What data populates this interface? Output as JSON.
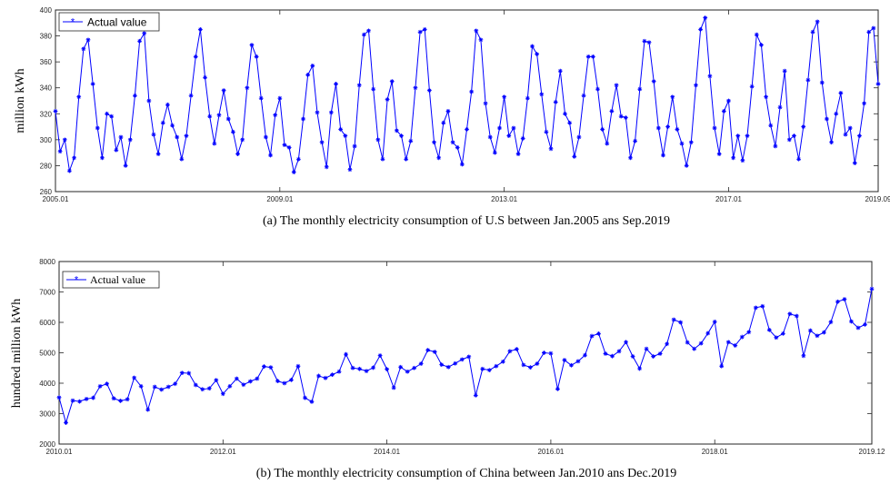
{
  "chart_data": [
    {
      "type": "line",
      "caption": "(a) The monthly electricity consumption of U.S between Jan.2005 ans Sep.2019",
      "ylabel": "million kWh",
      "xlabel": "",
      "ylim": [
        260,
        400
      ],
      "yticks": [
        260,
        280,
        300,
        320,
        340,
        360,
        380,
        400
      ],
      "xticks": [
        "2005.01",
        "2009.01",
        "2013.01",
        "2017.01",
        "2019.09"
      ],
      "x_start": "2005.01",
      "x_end": "2019.09",
      "legend": "top-left",
      "grid": false,
      "color": "#0000ff",
      "series": [
        {
          "name": "Actual value",
          "values": [
            322,
            291,
            300,
            276,
            286,
            333,
            370,
            377,
            343,
            309,
            286,
            320,
            318,
            292,
            302,
            280,
            300,
            334,
            376,
            382,
            330,
            304,
            289,
            313,
            327,
            311,
            302,
            285,
            303,
            334,
            364,
            385,
            348,
            318,
            297,
            319,
            338,
            316,
            306,
            289,
            300,
            340,
            373,
            364,
            332,
            302,
            288,
            319,
            332,
            296,
            294,
            275,
            285,
            316,
            350,
            357,
            321,
            298,
            279,
            321,
            343,
            308,
            303,
            277,
            295,
            342,
            381,
            384,
            339,
            300,
            285,
            331,
            345,
            307,
            303,
            285,
            299,
            340,
            383,
            385,
            338,
            298,
            286,
            313,
            322,
            298,
            294,
            281,
            308,
            337,
            384,
            377,
            328,
            302,
            290,
            309,
            333,
            303,
            309,
            289,
            301,
            332,
            372,
            366,
            335,
            306,
            293,
            329,
            353,
            320,
            313,
            287,
            302,
            334,
            364,
            364,
            339,
            308,
            297,
            322,
            342,
            318,
            317,
            286,
            299,
            339,
            376,
            375,
            345,
            309,
            288,
            310,
            333,
            308,
            297,
            280,
            298,
            342,
            385,
            394,
            349,
            309,
            289,
            322,
            330,
            286,
            303,
            284,
            303,
            341,
            381,
            373,
            333,
            311,
            295,
            325,
            353,
            300,
            303,
            285,
            310,
            346,
            383,
            391,
            344,
            316,
            298,
            320,
            336,
            304,
            309,
            282,
            303,
            328,
            383,
            386,
            343
          ]
        }
      ]
    },
    {
      "type": "line",
      "caption": "(b) The monthly electricity consumption of China between Jan.2010 ans Dec.2019",
      "ylabel": "hundred million kWh",
      "xlabel": "",
      "ylim": [
        2000,
        8000
      ],
      "yticks": [
        2000,
        3000,
        4000,
        5000,
        6000,
        7000,
        8000
      ],
      "xticks": [
        "2010.01",
        "2012.01",
        "2014.01",
        "2016.01",
        "2018.01",
        "2019.12"
      ],
      "x_start": "2010.01",
      "x_end": "2019.12",
      "legend": "top-left",
      "grid": false,
      "color": "#0000ff",
      "series": [
        {
          "name": "Actual value",
          "values": [
            3530,
            2700,
            3430,
            3400,
            3480,
            3520,
            3900,
            3980,
            3500,
            3420,
            3470,
            4180,
            3900,
            3130,
            3880,
            3790,
            3880,
            3980,
            4340,
            4330,
            3940,
            3800,
            3830,
            4100,
            3650,
            3900,
            4150,
            3950,
            4060,
            4150,
            4550,
            4520,
            4070,
            4000,
            4110,
            4560,
            3520,
            3390,
            4240,
            4170,
            4280,
            4380,
            4950,
            4500,
            4470,
            4400,
            4510,
            4910,
            4460,
            3850,
            4530,
            4380,
            4500,
            4640,
            5090,
            5030,
            4610,
            4530,
            4650,
            4780,
            4870,
            3600,
            4470,
            4430,
            4560,
            4710,
            5050,
            5120,
            4600,
            4520,
            4640,
            5000,
            4980,
            3810,
            4760,
            4590,
            4720,
            4920,
            5550,
            5630,
            4970,
            4890,
            5050,
            5350,
            4880,
            4480,
            5130,
            4880,
            4970,
            5290,
            6090,
            6000,
            5340,
            5130,
            5310,
            5640,
            6020,
            4560,
            5350,
            5240,
            5520,
            5680,
            6480,
            6530,
            5750,
            5500,
            5630,
            6280,
            6210,
            4900,
            5730,
            5560,
            5670,
            6010,
            6680,
            6760,
            6030,
            5820,
            5930,
            7100
          ]
        }
      ]
    }
  ]
}
